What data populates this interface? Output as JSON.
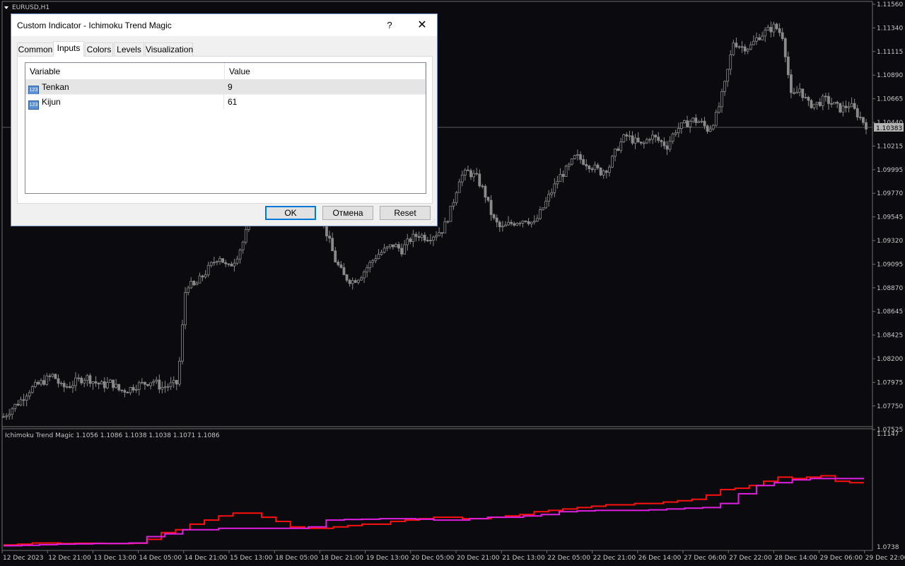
{
  "chart": {
    "symbol_label": "EURUSD,H1",
    "current_price_label": "1.10383",
    "price_levels": [
      "1.11560",
      "1.11340",
      "1.11115",
      "1.10890",
      "1.10665",
      "1.10440",
      "1.10215",
      "1.09995",
      "1.09770",
      "1.09545",
      "1.09320",
      "1.09095",
      "1.08870",
      "1.08645",
      "1.08425",
      "1.08200",
      "1.07975",
      "1.07750",
      "1.07525"
    ],
    "indicator_label": "Ichimoku Trend Magic 1.1056 1.1086 1.1038 1.1038 1.1071 1.1086",
    "indicator_levels": [
      "1.1147",
      "1.0738"
    ],
    "time_labels": [
      "12 Dec 2023",
      "12 Dec 21:00",
      "13 Dec 13:00",
      "14 Dec 05:00",
      "14 Dec 21:00",
      "15 Dec 13:00",
      "18 Dec 05:00",
      "18 Dec 21:00",
      "19 Dec 13:00",
      "20 Dec 05:00",
      "20 Dec 21:00",
      "21 Dec 13:00",
      "22 Dec 05:00",
      "22 Dec 21:00",
      "26 Dec 14:00",
      "27 Dec 06:00",
      "27 Dec 22:00",
      "28 Dec 14:00",
      "29 Dec 06:00",
      "29 Dec 22:00"
    ],
    "colors": {
      "background": "#0a0a0f",
      "candles": "#8a8a8a",
      "line_red": "#ff1010",
      "line_magenta": "#e020e0",
      "grid_text": "#c8c8c8"
    }
  },
  "chart_data": {
    "type": "line",
    "title": "",
    "price_series": {
      "name": "EURUSD,H1",
      "close": [
        1.076,
        1.0768,
        1.0775,
        1.0785,
        1.079,
        1.0795,
        1.08,
        1.0788,
        1.079,
        1.0795,
        1.0798,
        1.0793,
        1.079,
        1.0793,
        1.0785,
        1.0786,
        1.079,
        1.0792,
        1.0795,
        1.0788,
        1.079,
        1.0792,
        1.0888,
        1.0885,
        1.0895,
        1.0905,
        1.0915,
        1.0902,
        1.0912,
        1.093,
        1.096,
        1.0975,
        1.099,
        1.0995,
        1.1,
        1.099,
        1.1,
        1.0985,
        1.096,
        1.0935,
        1.091,
        1.0895,
        1.089,
        1.0895,
        1.0905,
        1.0915,
        1.092,
        1.0925,
        1.092,
        1.093,
        1.0935,
        1.0932,
        1.0935,
        1.094,
        1.096,
        1.099,
        1.0995,
        1.099,
        1.0975,
        1.095,
        1.094,
        1.0945,
        1.0948,
        1.095,
        1.0945,
        1.096,
        1.0975,
        1.099,
        1.0998,
        1.101,
        1.1005,
        1.1,
        1.0995,
        1.1,
        1.1018,
        1.103,
        1.1025,
        1.102,
        1.103,
        1.1025,
        1.102,
        1.1035,
        1.104,
        1.1045,
        1.1043,
        1.1035,
        1.105,
        1.108,
        1.112,
        1.1115,
        1.1115,
        1.1125,
        1.113,
        1.1135,
        1.1125,
        1.1065,
        1.1075,
        1.106,
        1.106,
        1.1065,
        1.106,
        1.1055,
        1.106,
        1.105,
        1.104
      ]
    },
    "series": [
      {
        "name": "",
        "values": [
          1.0745,
          1.0748,
          1.0752,
          1.0752,
          1.075,
          1.0751,
          1.0751,
          1.075,
          1.075,
          1.0751,
          1.0765,
          1.079,
          1.08,
          1.082,
          1.0835,
          1.085,
          1.086,
          1.086,
          1.0845,
          1.083,
          1.081,
          1.0805,
          1.0805,
          1.081,
          1.0815,
          1.082,
          1.082,
          1.083,
          1.0835,
          1.084,
          1.0845,
          1.0845,
          1.084,
          1.084,
          1.0845,
          1.085,
          1.0855,
          1.0865,
          1.087,
          1.0875,
          1.088,
          1.0885,
          1.089,
          1.089,
          1.0895,
          1.0895,
          1.09,
          1.0905,
          1.091,
          1.0925,
          1.0945,
          1.095,
          1.096,
          1.0975,
          1.099,
          1.0985,
          1.099,
          1.0995,
          1.0975,
          1.097,
          1.097
        ]
      },
      {
        "name": "",
        "values": [
          1.0742,
          1.0744,
          1.0746,
          1.0748,
          1.0749,
          1.075,
          1.075,
          1.0752,
          1.0775,
          1.0785,
          1.08,
          1.08,
          1.0805,
          1.0805,
          1.0805,
          1.0805,
          1.0805,
          1.081,
          1.0835,
          1.0837,
          1.0838,
          1.084,
          1.084,
          1.0838,
          1.0835,
          1.0835,
          1.084,
          1.0845,
          1.0845,
          1.085,
          1.0855,
          1.0865,
          1.0868,
          1.087,
          1.087,
          1.087,
          1.0872,
          1.0875,
          1.0878,
          1.088,
          1.0895,
          1.093,
          1.096,
          1.097,
          1.098,
          1.0985,
          1.0985,
          1.0985,
          1.0985
        ]
      }
    ]
  },
  "dialog": {
    "title": "Custom Indicator - Ichimoku Trend Magic",
    "help_label": "?",
    "close_label": "✕",
    "tabs": [
      "Common",
      "Inputs",
      "Colors",
      "Levels",
      "Visualization"
    ],
    "active_tab": "Inputs",
    "grid_headers": [
      "Variable",
      "Value"
    ],
    "inputs": [
      {
        "variable": "Tenkan",
        "value": "9",
        "icon": "numeric-param-icon"
      },
      {
        "variable": "Kijun",
        "value": "61",
        "icon": "numeric-param-icon"
      }
    ],
    "icon_text": "123",
    "buttons": {
      "ok": "OK",
      "cancel": "Отмена",
      "reset": "Reset"
    }
  }
}
